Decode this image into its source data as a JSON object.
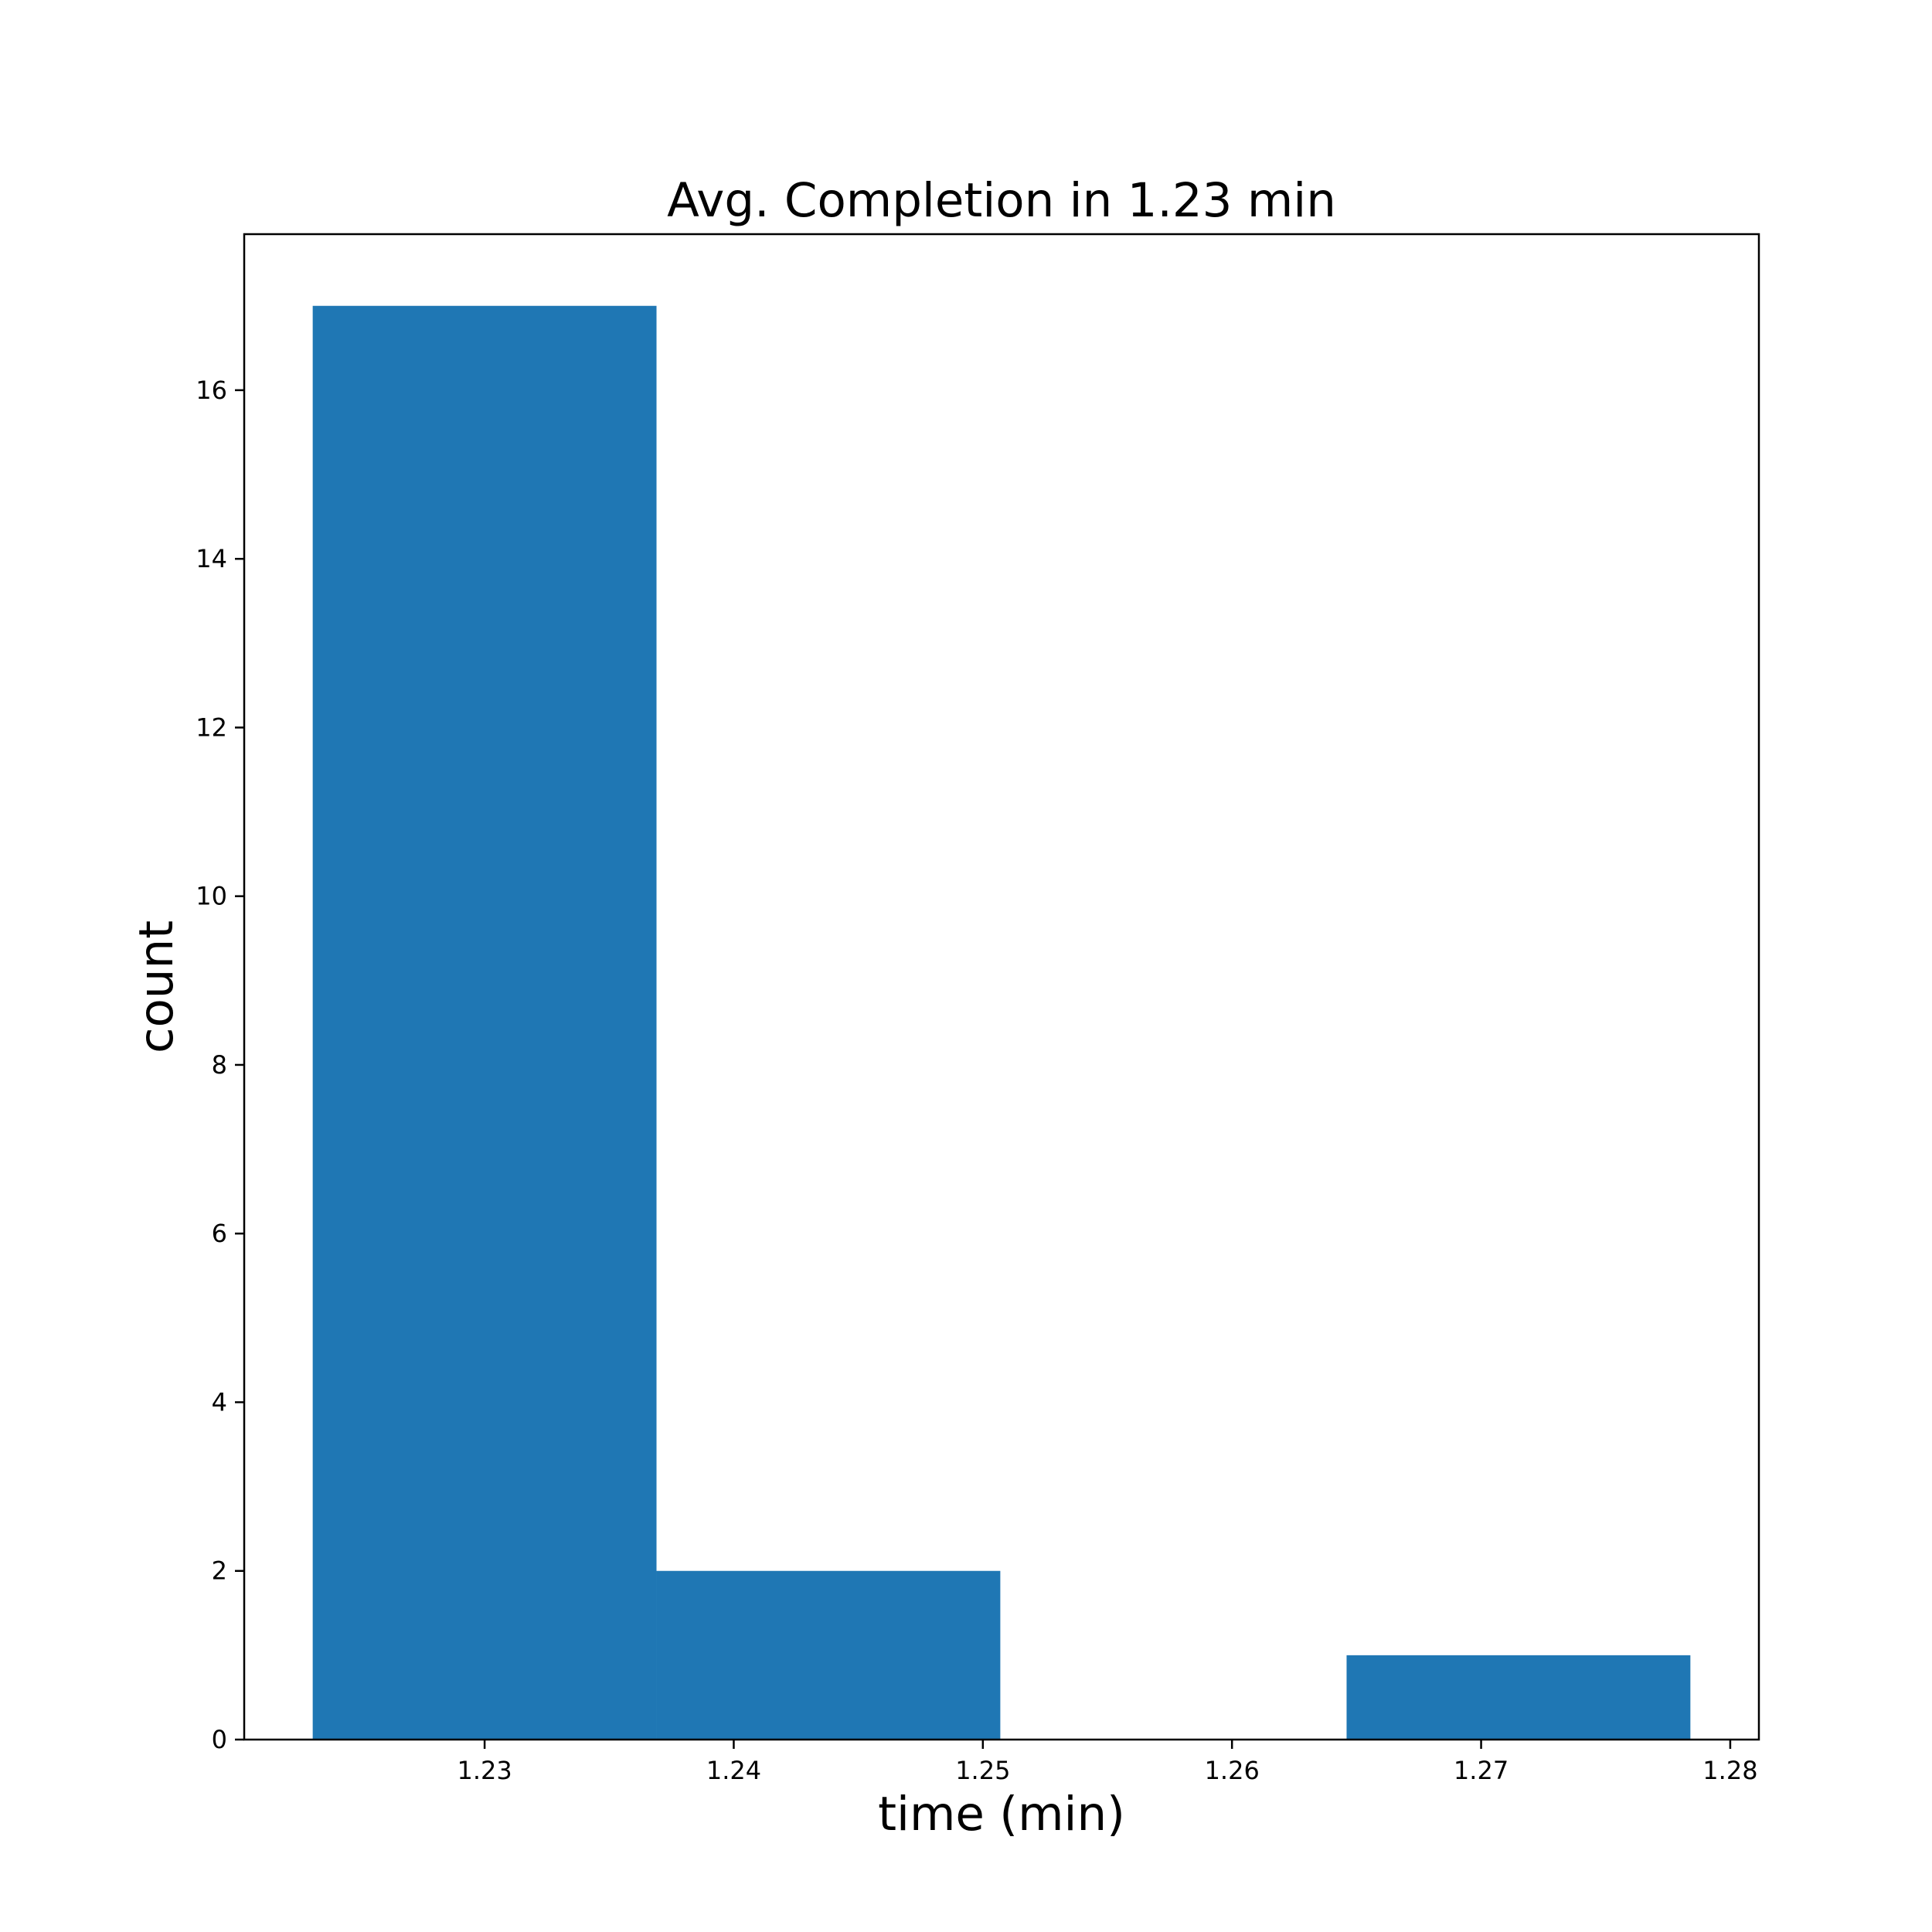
{
  "chart_data": {
    "type": "bar",
    "title": "Avg. Completion in 1.23 min",
    "xlabel": "time (min)",
    "ylabel": "count",
    "bins": [
      {
        "start": 1.2231,
        "end": 1.2369,
        "count": 17
      },
      {
        "start": 1.2369,
        "end": 1.2507,
        "count": 2
      },
      {
        "start": 1.2507,
        "end": 1.2646,
        "count": 0
      },
      {
        "start": 1.2646,
        "end": 1.2784,
        "count": 1
      }
    ],
    "xlim": [
      1.22035,
      1.28115
    ],
    "ylim": [
      0,
      17.85
    ],
    "xticks": [
      1.23,
      1.24,
      1.25,
      1.26,
      1.27,
      1.28
    ],
    "xtick_labels": [
      "1.23",
      "1.24",
      "1.25",
      "1.26",
      "1.27",
      "1.28"
    ],
    "yticks": [
      0,
      2,
      4,
      6,
      8,
      10,
      12,
      14,
      16
    ],
    "ytick_labels": [
      "0",
      "2",
      "4",
      "6",
      "8",
      "10",
      "12",
      "14",
      "16"
    ],
    "grid": false,
    "bar_color": "#1f77b4"
  }
}
